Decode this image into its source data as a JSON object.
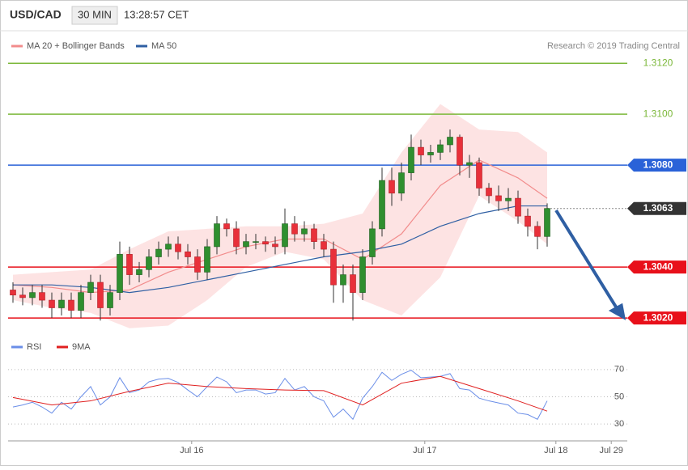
{
  "header": {
    "symbol": "USD/CAD",
    "interval": "30 MIN",
    "time": "13:28:57 CET"
  },
  "copyright": "Research © 2019 Trading Central",
  "chart_data": [
    {
      "type": "candlestick",
      "up_color": "#2f8f2f",
      "down_color": "#e8303a",
      "xlim": [
        -0.5,
        63.25
      ],
      "ylim": [
        1.3014,
        1.3128
      ],
      "open": [
        1.3031,
        1.3029,
        1.3028,
        1.303,
        1.3027,
        1.3024,
        1.3027,
        1.3023,
        1.303,
        1.3034,
        1.3024,
        1.303,
        1.3045,
        1.3037,
        1.3039,
        1.3044,
        1.3047,
        1.3049,
        1.3046,
        1.3044,
        1.3038,
        1.3048,
        1.3057,
        1.3055,
        1.3048,
        1.305,
        1.305,
        1.3049,
        1.3048,
        1.3057,
        1.3053,
        1.3055,
        1.305,
        1.3047,
        1.3033,
        1.3037,
        1.303,
        1.3044,
        1.3055,
        1.3074,
        1.3069,
        1.3077,
        1.3087,
        1.3084,
        1.3085,
        1.3088,
        1.3091,
        1.308,
        1.3081,
        1.3071,
        1.3068,
        1.3066,
        1.3067,
        1.306,
        1.3056,
        1.3052
      ],
      "high": [
        1.3034,
        1.3032,
        1.3033,
        1.3033,
        1.303,
        1.303,
        1.303,
        1.3033,
        1.3037,
        1.3037,
        1.3033,
        1.305,
        1.3048,
        1.3042,
        1.3047,
        1.305,
        1.3052,
        1.3052,
        1.3049,
        1.3047,
        1.3051,
        1.306,
        1.3059,
        1.3058,
        1.3053,
        1.3053,
        1.3052,
        1.3052,
        1.3063,
        1.306,
        1.3058,
        1.3057,
        1.3053,
        1.305,
        1.3041,
        1.3041,
        1.3047,
        1.3058,
        1.3079,
        1.3079,
        1.3081,
        1.3092,
        1.309,
        1.3088,
        1.309,
        1.3094,
        1.3092,
        1.3084,
        1.3083,
        1.3073,
        1.3072,
        1.3071,
        1.307,
        1.3063,
        1.3058,
        1.3065
      ],
      "low": [
        1.3026,
        1.3025,
        1.3025,
        1.3024,
        1.302,
        1.3021,
        1.302,
        1.302,
        1.3027,
        1.3019,
        1.3021,
        1.3027,
        1.3033,
        1.3034,
        1.3036,
        1.3041,
        1.3044,
        1.3043,
        1.3041,
        1.3035,
        1.3035,
        1.3045,
        1.3052,
        1.3045,
        1.3045,
        1.3047,
        1.3046,
        1.3045,
        1.3045,
        1.305,
        1.305,
        1.3047,
        1.3044,
        1.3026,
        1.3026,
        1.3019,
        1.3027,
        1.3041,
        1.3052,
        1.3064,
        1.3066,
        1.3074,
        1.308,
        1.3081,
        1.3082,
        1.3085,
        1.3076,
        1.3075,
        1.3068,
        1.3065,
        1.3062,
        1.3062,
        1.3057,
        1.3052,
        1.3047,
        1.3048
      ],
      "close": [
        1.3029,
        1.3028,
        1.303,
        1.3027,
        1.3024,
        1.3027,
        1.3023,
        1.303,
        1.3034,
        1.3024,
        1.303,
        1.3045,
        1.3037,
        1.3039,
        1.3044,
        1.3047,
        1.3049,
        1.3046,
        1.3044,
        1.3038,
        1.3048,
        1.3057,
        1.3055,
        1.3048,
        1.305,
        1.305,
        1.3049,
        1.3048,
        1.3057,
        1.3053,
        1.3055,
        1.305,
        1.3047,
        1.3033,
        1.3037,
        1.303,
        1.3044,
        1.3055,
        1.3074,
        1.3069,
        1.3077,
        1.3087,
        1.3084,
        1.3085,
        1.3088,
        1.3091,
        1.308,
        1.3081,
        1.3071,
        1.3068,
        1.3066,
        1.3067,
        1.306,
        1.3056,
        1.3052,
        1.3063
      ],
      "overlay_x": [
        0,
        4,
        8,
        12,
        16,
        20,
        24,
        28,
        32,
        36,
        40,
        44,
        48,
        52,
        55
      ],
      "bands": {
        "color": "#fcdcdc",
        "upper": [
          1.3037,
          1.3038,
          1.3039,
          1.3047,
          1.3054,
          1.3055,
          1.3056,
          1.3056,
          1.3057,
          1.3061,
          1.3085,
          1.3104,
          1.3094,
          1.3093,
          1.3085
        ],
        "lower": [
          1.3027,
          1.3024,
          1.3022,
          1.3016,
          1.3017,
          1.3027,
          1.304,
          1.3046,
          1.3043,
          1.3027,
          1.3021,
          1.3036,
          1.3068,
          1.3058,
          1.3049
        ]
      },
      "series": [
        {
          "name": "MA 20 + Bollinger Bands",
          "color": "#f28c8c",
          "values": [
            1.3033,
            1.3032,
            1.303,
            1.3031,
            1.3038,
            1.3043,
            1.3048,
            1.3051,
            1.3051,
            1.3043,
            1.3053,
            1.3072,
            1.3082,
            1.3075,
            1.3067
          ]
        },
        {
          "name": "MA 50",
          "color": "#2f5fa3",
          "values": [
            1.3033,
            1.3033,
            1.3032,
            1.303,
            1.3032,
            1.3035,
            1.3038,
            1.3041,
            1.3044,
            1.3046,
            1.3049,
            1.3056,
            1.3061,
            1.3064,
            1.3064
          ]
        }
      ],
      "levels": [
        {
          "value": 1.312,
          "label": "1.3120",
          "color": "#7cb83a",
          "boxed": false,
          "dotted": false
        },
        {
          "value": 1.31,
          "label": "1.3100",
          "color": "#7cb83a",
          "boxed": false,
          "dotted": false
        },
        {
          "value": 1.308,
          "label": "1.3080",
          "color": "#2a62d8",
          "boxed": true,
          "dotted": false
        },
        {
          "value": 1.3063,
          "label": "1.3063",
          "color": "#333333",
          "boxed": true,
          "dotted": true
        },
        {
          "value": 1.304,
          "label": "1.3040",
          "color": "#e8101a",
          "boxed": true,
          "dotted": false
        },
        {
          "value": 1.302,
          "label": "1.3020",
          "color": "#e8101a",
          "boxed": true,
          "dotted": false
        }
      ]
    },
    {
      "type": "line",
      "xlim": [
        -0.5,
        63.25
      ],
      "ylim": [
        20,
        80
      ],
      "yticks": [
        30,
        50,
        70
      ],
      "xticks": [
        {
          "value": 18.4,
          "label": "Jul 16"
        },
        {
          "value": 42.4,
          "label": "Jul 17"
        },
        {
          "value": 55.9,
          "label": "Jul 18"
        },
        {
          "value": 61.6,
          "label": "Jul 29"
        }
      ],
      "series": [
        {
          "name": "RSI",
          "color": "#6a8ee8",
          "values": [
            42.5,
            44,
            46,
            42.5,
            38,
            46,
            41,
            50,
            57.5,
            44,
            50,
            64,
            53,
            55,
            61,
            63,
            63.5,
            60.5,
            55,
            50,
            57.5,
            64.5,
            61,
            53,
            55,
            55,
            52,
            53,
            63.5,
            55,
            57.5,
            50,
            47,
            35,
            41,
            33.5,
            49,
            57.5,
            68,
            62,
            66.5,
            69.5,
            64,
            64.5,
            65,
            67,
            56,
            55,
            49,
            47,
            45.5,
            44,
            38,
            37,
            33.5,
            47
          ]
        },
        {
          "name": "9MA",
          "color": "#e02020",
          "x": [
            0,
            4,
            8,
            12,
            16,
            20,
            24,
            28,
            32,
            36,
            40,
            44,
            48,
            52,
            55
          ],
          "values": [
            49.5,
            44,
            47,
            54,
            60,
            57.5,
            56,
            55,
            54.5,
            44,
            60,
            65,
            56,
            47,
            39.5
          ]
        }
      ]
    }
  ]
}
